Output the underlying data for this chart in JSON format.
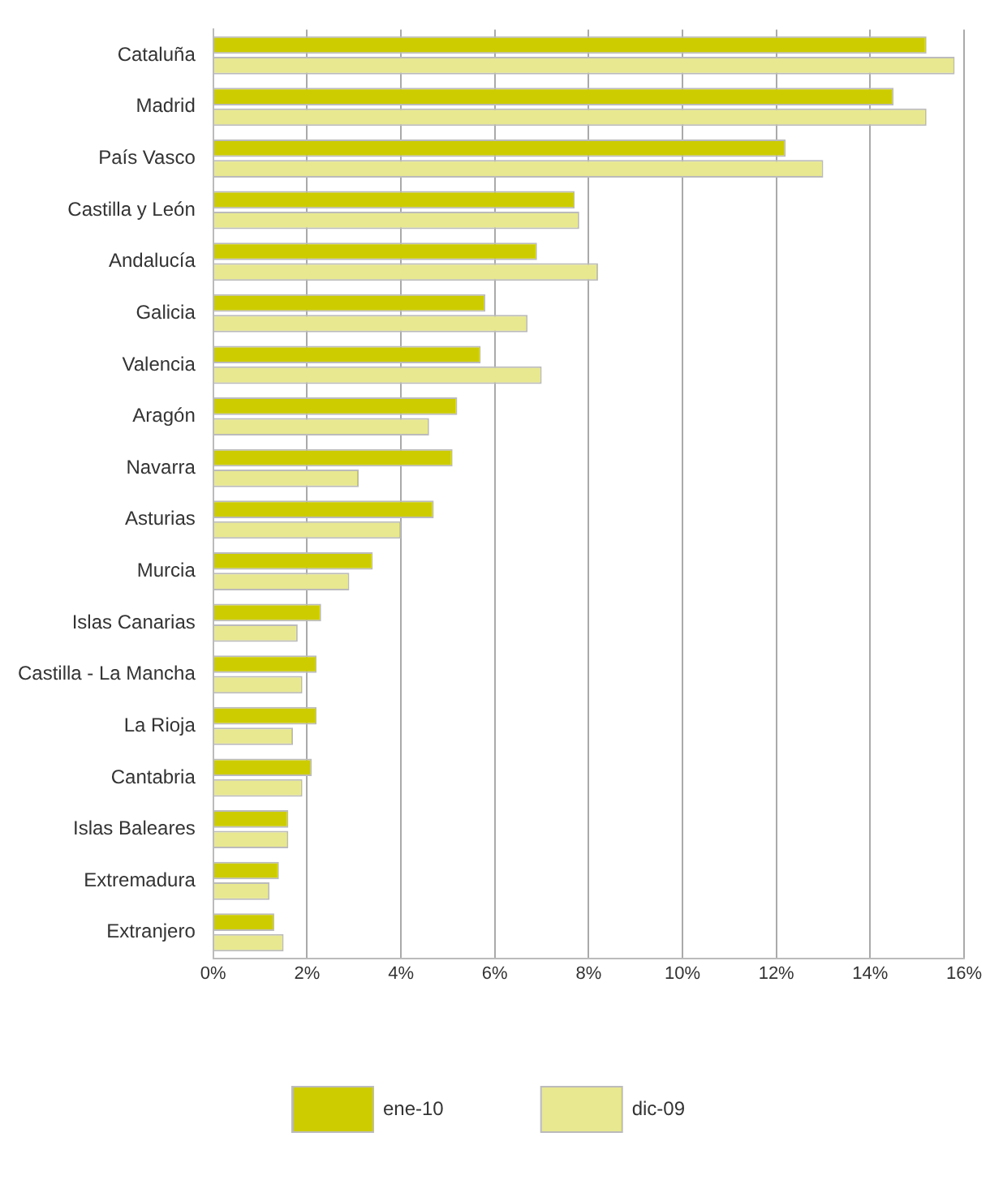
{
  "chart_data": {
    "type": "bar",
    "orientation": "horizontal",
    "categories": [
      "Cataluña",
      "Madrid",
      "País Vasco",
      "Castilla y León",
      "Andalucía",
      "Galicia",
      "Valencia",
      "Aragón",
      "Navarra",
      "Asturias",
      "Murcia",
      "Islas Canarias",
      "Castilla - La Mancha",
      "La Rioja",
      "Cantabria",
      "Islas Baleares",
      "Extremadura",
      "Extranjero"
    ],
    "series": [
      {
        "name": "ene-10",
        "color": "#cccc00",
        "values": [
          15.2,
          14.5,
          12.2,
          7.7,
          6.9,
          5.8,
          5.7,
          5.2,
          5.1,
          4.7,
          3.4,
          2.3,
          2.2,
          2.2,
          2.1,
          1.6,
          1.4,
          1.3
        ]
      },
      {
        "name": "dic-09",
        "color": "#e8e890",
        "values": [
          15.8,
          15.2,
          13.0,
          7.8,
          8.2,
          6.7,
          7.0,
          4.6,
          3.1,
          4.0,
          2.9,
          1.8,
          1.9,
          1.7,
          1.9,
          1.6,
          1.2,
          1.5
        ]
      }
    ],
    "xlim": [
      0,
      16
    ],
    "xticks": [
      {
        "value": 0,
        "label": "0%"
      },
      {
        "value": 2,
        "label": "2%"
      },
      {
        "value": 4,
        "label": "4%"
      },
      {
        "value": 6,
        "label": "6%"
      },
      {
        "value": 8,
        "label": "8%"
      },
      {
        "value": 10,
        "label": "10%"
      },
      {
        "value": 12,
        "label": "12%"
      },
      {
        "value": 14,
        "label": "14%"
      },
      {
        "value": 16,
        "label": "16%"
      }
    ],
    "grid": "x",
    "legend": "bottom"
  }
}
